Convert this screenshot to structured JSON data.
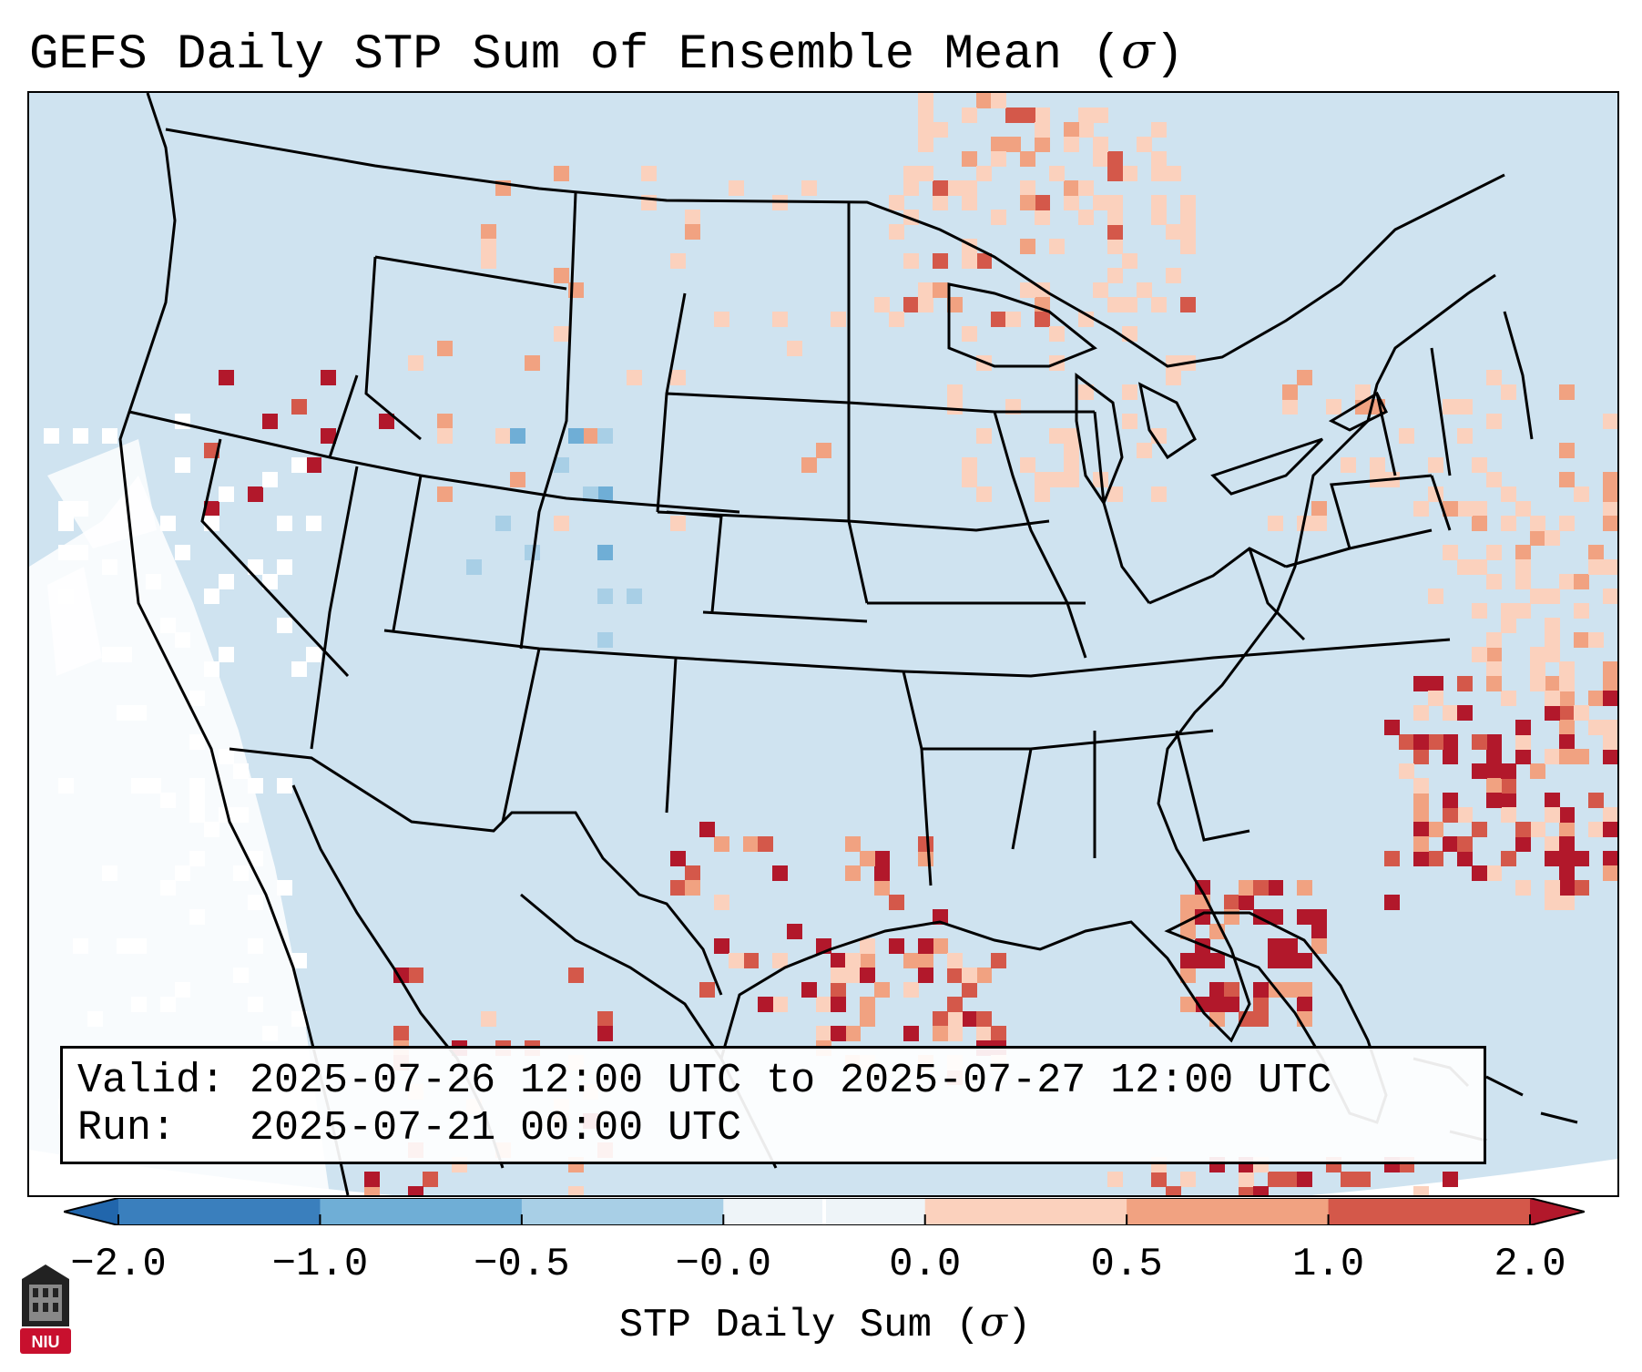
{
  "title": {
    "text": "GEFS Daily STP Sum of Ensemble Mean (",
    "symbol": "σ",
    "close": ")"
  },
  "info": {
    "valid_label": "Valid:",
    "valid_value": "2025-07-26 12:00 UTC to 2025-07-27 12:00 UTC",
    "run_label": "Run:",
    "run_value": "2025-07-21 00:00 UTC"
  },
  "colorbar": {
    "ticks": [
      "−2.0",
      "−1.0",
      "−0.5",
      "−0.0",
      "0.0",
      "0.5",
      "1.0",
      "2.0"
    ],
    "label_text": "STP Daily Sum (",
    "label_symbol": "σ",
    "label_close": ")",
    "colors": [
      "#3a7fbd",
      "#6faed6",
      "#a8cfe6",
      "#d8e7f2",
      "#f8f8f8",
      "#fbd1bd",
      "#f1a281",
      "#d4584a",
      "#b2182b"
    ],
    "under_color": "#2166ac",
    "over_color": "#b2182b"
  },
  "map": {
    "background_color": "#cfe3f0",
    "land_line_color": "#000000"
  },
  "logo": {
    "text": "NIU"
  }
}
